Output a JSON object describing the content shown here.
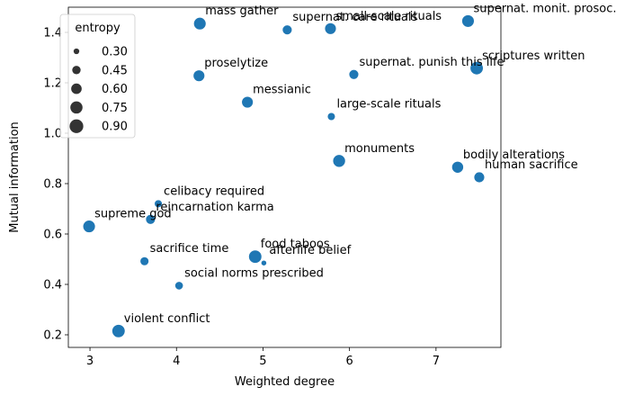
{
  "chart_data": {
    "type": "scatter",
    "xlabel": "Weighted degree",
    "ylabel": "Mutual information",
    "xlim": [
      2.75,
      7.75
    ],
    "ylim": [
      0.15,
      1.5
    ],
    "xticks": [
      3,
      4,
      5,
      6,
      7
    ],
    "yticks": [
      0.2,
      0.4,
      0.6,
      0.8,
      1.0,
      1.2,
      1.4
    ],
    "grid": false,
    "color": "#1f77b4",
    "legend": {
      "title": "entropy",
      "placement": "top-left",
      "entries": [
        {
          "label": "0.30",
          "value": 0.3
        },
        {
          "label": "0.45",
          "value": 0.45
        },
        {
          "label": "0.60",
          "value": 0.6
        },
        {
          "label": "0.75",
          "value": 0.75
        },
        {
          "label": "0.90",
          "value": 0.9
        }
      ]
    },
    "points": [
      {
        "label": "mass gather",
        "x": 4.27,
        "y": 1.435,
        "entropy": 0.78
      },
      {
        "label": "supernat. care rituals",
        "x": 5.28,
        "y": 1.41,
        "entropy": 0.55
      },
      {
        "label": "small-scale rituals",
        "x": 5.78,
        "y": 1.415,
        "entropy": 0.7
      },
      {
        "label": "supernat. monit. prosoc.",
        "x": 7.37,
        "y": 1.445,
        "entropy": 0.78
      },
      {
        "label": "proselytize",
        "x": 4.26,
        "y": 1.228,
        "entropy": 0.7
      },
      {
        "label": "scriptures written",
        "x": 7.47,
        "y": 1.258,
        "entropy": 0.85
      },
      {
        "label": "messianic",
        "x": 4.82,
        "y": 1.123,
        "entropy": 0.7
      },
      {
        "label": "supernat. punish this life",
        "x": 6.05,
        "y": 1.233,
        "entropy": 0.55
      },
      {
        "label": "large-scale rituals",
        "x": 5.79,
        "y": 1.066,
        "entropy": 0.42
      },
      {
        "label": "monuments",
        "x": 5.88,
        "y": 0.89,
        "entropy": 0.8
      },
      {
        "label": "bodily alterations",
        "x": 7.25,
        "y": 0.865,
        "entropy": 0.72
      },
      {
        "label": "human sacrifice",
        "x": 7.5,
        "y": 0.825,
        "entropy": 0.62
      },
      {
        "label": "celibacy required",
        "x": 3.79,
        "y": 0.72,
        "entropy": 0.42
      },
      {
        "label": "reincarnation karma",
        "x": 3.7,
        "y": 0.658,
        "entropy": 0.55
      },
      {
        "label": "supreme god",
        "x": 2.99,
        "y": 0.63,
        "entropy": 0.78
      },
      {
        "label": "sacrifice time",
        "x": 3.63,
        "y": 0.492,
        "entropy": 0.48
      },
      {
        "label": "food taboos",
        "x": 4.91,
        "y": 0.51,
        "entropy": 0.85
      },
      {
        "label": "afterlife belief",
        "x": 5.01,
        "y": 0.485,
        "entropy": 0.3
      },
      {
        "label": "social norms prescribed",
        "x": 4.03,
        "y": 0.395,
        "entropy": 0.45
      },
      {
        "label": "violent conflict",
        "x": 3.33,
        "y": 0.215,
        "entropy": 0.85
      }
    ]
  }
}
